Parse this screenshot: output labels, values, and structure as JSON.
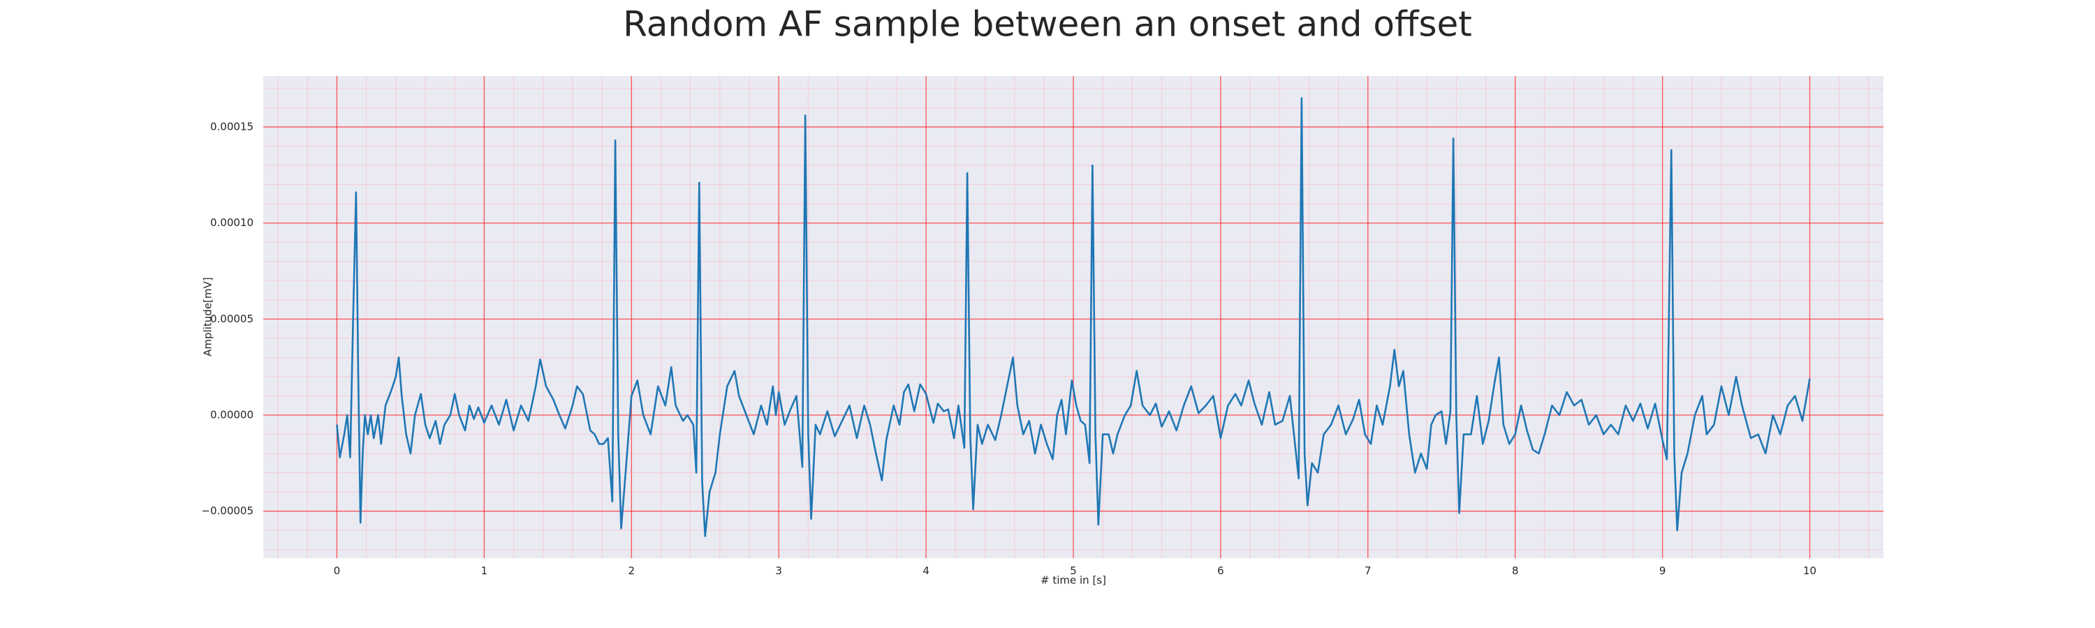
{
  "chart_data": {
    "type": "line",
    "title": "Random AF sample between an onset and offset",
    "xlabel": "# time in [s]",
    "ylabel": "Amplitude[mV]",
    "color": "#1f77b4",
    "grid": true,
    "minor_grid": true,
    "xlim": [
      -0.5,
      10.5
    ],
    "xticks": [
      0,
      1,
      2,
      3,
      4,
      5,
      6,
      7,
      8,
      9,
      10
    ],
    "ylim": [
      -7.45e-05,
      0.0001765
    ],
    "yticks": [
      {
        "value": -5e-05,
        "label": "−0.00005"
      },
      {
        "value": 0,
        "label": "0.00000"
      },
      {
        "value": 5e-05,
        "label": "0.00005"
      },
      {
        "value": 0.0001,
        "label": "0.00010"
      },
      {
        "value": 0.00015,
        "label": "0.00015"
      }
    ],
    "x": [
      0,
      0.02,
      0.05,
      0.07,
      0.09,
      0.11,
      0.13,
      0.145,
      0.16,
      0.175,
      0.19,
      0.21,
      0.23,
      0.25,
      0.28,
      0.3,
      0.33,
      0.37,
      0.4,
      0.42,
      0.44,
      0.47,
      0.5,
      0.53,
      0.57,
      0.6,
      0.63,
      0.67,
      0.7,
      0.73,
      0.77,
      0.8,
      0.83,
      0.87,
      0.9,
      0.93,
      0.96,
      1.0,
      1.05,
      1.1,
      1.15,
      1.2,
      1.25,
      1.3,
      1.35,
      1.38,
      1.42,
      1.47,
      1.5,
      1.55,
      1.6,
      1.63,
      1.67,
      1.72,
      1.75,
      1.78,
      1.81,
      1.84,
      1.87,
      1.89,
      1.91,
      1.93,
      1.96,
      1.98,
      2.0,
      2.04,
      2.08,
      2.13,
      2.18,
      2.23,
      2.27,
      2.3,
      2.35,
      2.38,
      2.42,
      2.44,
      2.46,
      2.48,
      2.5,
      2.53,
      2.57,
      2.6,
      2.65,
      2.7,
      2.73,
      2.78,
      2.83,
      2.88,
      2.92,
      2.96,
      2.98,
      3.0,
      3.04,
      3.08,
      3.12,
      3.16,
      3.18,
      3.2,
      3.22,
      3.25,
      3.28,
      3.33,
      3.38,
      3.43,
      3.48,
      3.53,
      3.58,
      3.62,
      3.66,
      3.7,
      3.73,
      3.78,
      3.82,
      3.85,
      3.88,
      3.92,
      3.96,
      4.0,
      4.05,
      4.08,
      4.12,
      4.15,
      4.19,
      4.22,
      4.26,
      4.28,
      4.3,
      4.32,
      4.35,
      4.38,
      4.42,
      4.47,
      4.51,
      4.55,
      4.59,
      4.62,
      4.66,
      4.7,
      4.74,
      4.78,
      4.82,
      4.86,
      4.89,
      4.92,
      4.95,
      4.99,
      5.02,
      5.05,
      5.08,
      5.11,
      5.13,
      5.15,
      5.17,
      5.2,
      5.24,
      5.27,
      5.3,
      5.35,
      5.39,
      5.43,
      5.47,
      5.52,
      5.56,
      5.6,
      5.65,
      5.7,
      5.75,
      5.8,
      5.85,
      5.9,
      5.95,
      6.0,
      6.05,
      6.1,
      6.14,
      6.19,
      6.23,
      6.28,
      6.33,
      6.37,
      6.42,
      6.47,
      6.53,
      6.55,
      6.57,
      6.59,
      6.62,
      6.66,
      6.7,
      6.75,
      6.8,
      6.85,
      6.9,
      6.94,
      6.98,
      7.02,
      7.06,
      7.1,
      7.15,
      7.18,
      7.21,
      7.24,
      7.28,
      7.32,
      7.36,
      7.4,
      7.43,
      7.46,
      7.5,
      7.53,
      7.56,
      7.58,
      7.6,
      7.62,
      7.65,
      7.7,
      7.74,
      7.78,
      7.82,
      7.86,
      7.89,
      7.92,
      7.96,
      8.0,
      8.04,
      8.08,
      8.12,
      8.16,
      8.2,
      8.25,
      8.3,
      8.35,
      8.4,
      8.45,
      8.5,
      8.55,
      8.6,
      8.65,
      8.7,
      8.75,
      8.8,
      8.85,
      8.9,
      8.95,
      9.0,
      9.03,
      9.06,
      9.08,
      9.1,
      9.13,
      9.17,
      9.22,
      9.27,
      9.3,
      9.35,
      9.4,
      9.45,
      9.5,
      9.54,
      9.6,
      9.65,
      9.7,
      9.75,
      9.8,
      9.85,
      9.9,
      9.95,
      10.0
    ],
    "values": [
      -5e-06,
      -2.2e-05,
      -1e-05,
      0,
      -2.2e-05,
      5e-05,
      0.000116,
      2e-05,
      -5.6e-05,
      -2e-05,
      0,
      -1e-05,
      0,
      -1.2e-05,
      0,
      -1.5e-05,
      5e-06,
      1.3e-05,
      2e-05,
      3e-05,
      1e-05,
      -1e-05,
      -2e-05,
      0,
      1.1e-05,
      -5e-06,
      -1.2e-05,
      -3e-06,
      -1.5e-05,
      -5e-06,
      0,
      1.1e-05,
      0,
      -8e-06,
      5e-06,
      -2e-06,
      4e-06,
      -4e-06,
      5e-06,
      -5e-06,
      8e-06,
      -8e-06,
      5e-06,
      -3e-06,
      1.5e-05,
      2.9e-05,
      1.5e-05,
      8e-06,
      2e-06,
      -7e-06,
      5e-06,
      1.5e-05,
      1.1e-05,
      -8e-06,
      -1e-05,
      -1.5e-05,
      -1.5e-05,
      -1.2e-05,
      -4.5e-05,
      0.000143,
      -1e-05,
      -5.9e-05,
      -3e-05,
      -1e-05,
      1e-05,
      1.8e-05,
      0,
      -1e-05,
      1.5e-05,
      5e-06,
      2.5e-05,
      5e-06,
      -3e-06,
      0,
      -5e-06,
      -3e-05,
      0.000121,
      -3.5e-05,
      -6.3e-05,
      -4e-05,
      -3e-05,
      -1e-05,
      1.5e-05,
      2.3e-05,
      1e-05,
      0,
      -1e-05,
      5e-06,
      -5e-06,
      1.5e-05,
      0,
      1.2e-05,
      -5e-06,
      3e-06,
      1e-05,
      -2.7e-05,
      0.000156,
      -1e-05,
      -5.4e-05,
      -5e-06,
      -1e-05,
      2e-06,
      -1.1e-05,
      -3e-06,
      5e-06,
      -1.2e-05,
      5e-06,
      -5e-06,
      -2e-05,
      -3.4e-05,
      -1.3e-05,
      5e-06,
      -5e-06,
      1.2e-05,
      1.6e-05,
      2e-06,
      1.6e-05,
      1.1e-05,
      -4e-06,
      6e-06,
      2e-06,
      3e-06,
      -1.2e-05,
      5e-06,
      -1.7e-05,
      0.000126,
      -1e-05,
      -4.9e-05,
      -5e-06,
      -1.5e-05,
      -5e-06,
      -1.3e-05,
      0,
      1.5e-05,
      3e-05,
      5e-06,
      -1e-05,
      -3e-06,
      -2e-05,
      -5e-06,
      -1.5e-05,
      -2.3e-05,
      0,
      8e-06,
      -1e-05,
      1.8e-05,
      5e-06,
      -3e-06,
      -5e-06,
      -2.5e-05,
      0.00013,
      -1e-05,
      -5.7e-05,
      -1e-05,
      -1e-05,
      -2e-05,
      -1e-05,
      0,
      5e-06,
      2.3e-05,
      5e-06,
      0,
      6e-06,
      -6e-06,
      2e-06,
      -8e-06,
      5e-06,
      1.5e-05,
      1e-06,
      5e-06,
      1e-05,
      -1.2e-05,
      5e-06,
      1.1e-05,
      5e-06,
      1.8e-05,
      6e-06,
      -5e-06,
      1.2e-05,
      -5e-06,
      -3e-06,
      1e-05,
      -3.3e-05,
      0.000165,
      -2e-05,
      -4.7e-05,
      -2.5e-05,
      -3e-05,
      -1e-05,
      -5e-06,
      5e-06,
      -1e-05,
      -2e-06,
      8e-06,
      -1e-05,
      -1.5e-05,
      5e-06,
      -5e-06,
      1.5e-05,
      3.4e-05,
      1.5e-05,
      2.3e-05,
      -1e-05,
      -3e-05,
      -2e-05,
      -2.8e-05,
      -5e-06,
      0,
      2e-06,
      -1.5e-05,
      2e-06,
      0.000144,
      0,
      -5.1e-05,
      -1e-05,
      -1e-05,
      1e-05,
      -1.5e-05,
      -3e-06,
      1.7e-05,
      3e-05,
      -5e-06,
      -1.5e-05,
      -1e-05,
      5e-06,
      -8e-06,
      -1.8e-05,
      -2e-05,
      -1e-05,
      5e-06,
      0,
      1.2e-05,
      5e-06,
      8e-06,
      -5e-06,
      0,
      -1e-05,
      -5e-06,
      -1e-05,
      5e-06,
      -3e-06,
      6e-06,
      -7e-06,
      6e-06,
      -1.3e-05,
      -2.3e-05,
      0.000138,
      -2e-05,
      -6e-05,
      -3e-05,
      -2e-05,
      0,
      1e-05,
      -1e-05,
      -5e-06,
      1.5e-05,
      0,
      2e-05,
      5e-06,
      -1.2e-05,
      -1e-05,
      -2e-05,
      0,
      -1e-05,
      5e-06,
      1e-05,
      -3e-06,
      1.9e-05
    ]
  }
}
